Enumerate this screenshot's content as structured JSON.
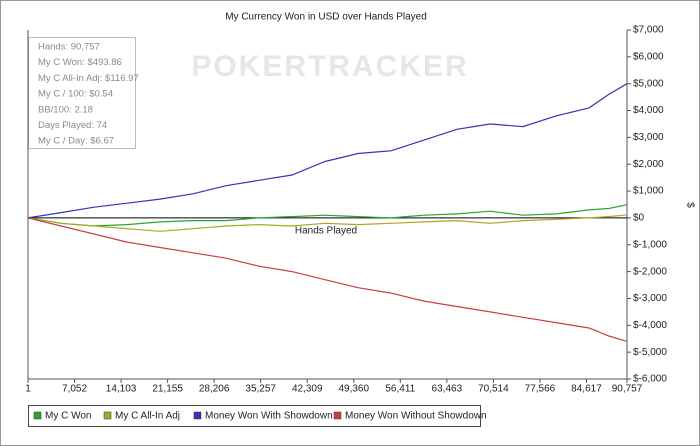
{
  "chart_data": {
    "type": "line",
    "title": "My Currency Won in USD over Hands Played",
    "x_label": "Hands Played",
    "y_label": "$",
    "watermark": "POKERTRACKER",
    "stats": [
      "Hands: 90,757",
      "My C Won: $493.86",
      "My C All-In Adj: $116.97",
      "My C / 100: $0.54",
      "BB/100: 2.18",
      "Days Played: 74",
      "My C / Day: $6.67"
    ],
    "x": [
      1,
      5000,
      10000,
      15000,
      20000,
      25000,
      30000,
      35000,
      40000,
      45000,
      50000,
      55000,
      60000,
      65000,
      70000,
      75000,
      80000,
      85000,
      88000,
      90757
    ],
    "series": [
      {
        "name": "My C Won",
        "color": "#2aa52a",
        "values": [
          0,
          -200,
          -300,
          -250,
          -150,
          -100,
          -100,
          0,
          50,
          100,
          50,
          0,
          100,
          150,
          250,
          100,
          150,
          300,
          350,
          493.86
        ]
      },
      {
        "name": "My C All-In Adj",
        "color": "#a9a824",
        "values": [
          0,
          -200,
          -300,
          -400,
          -500,
          -400,
          -300,
          -250,
          -300,
          -200,
          -250,
          -200,
          -150,
          -100,
          -200,
          -100,
          -50,
          0,
          50,
          116.97
        ]
      },
      {
        "name": "Money Won With Showdown",
        "color": "#3434b8",
        "values": [
          0,
          200,
          400,
          550,
          700,
          900,
          1200,
          1400,
          1600,
          2100,
          2400,
          2500,
          2900,
          3300,
          3500,
          3400,
          3800,
          4100,
          4600,
          5000
        ]
      },
      {
        "name": "Money Won Without Showdown",
        "color": "#c94040",
        "values": [
          0,
          -300,
          -600,
          -900,
          -1100,
          -1300,
          -1500,
          -1800,
          -2000,
          -2300,
          -2600,
          -2800,
          -3100,
          -3300,
          -3500,
          -3700,
          -3900,
          -4100,
          -4400,
          -4600
        ]
      }
    ],
    "xlim": [
      1,
      90757
    ],
    "xticks": [
      1,
      {
        "value": 7052,
        "label": "7,052"
      },
      {
        "value": 14103,
        "label": "14,103"
      },
      {
        "value": 21155,
        "label": "21,155"
      },
      {
        "value": 28206,
        "label": "28,206"
      },
      {
        "value": 35257,
        "label": "35,257"
      },
      {
        "value": 42309,
        "label": "42,309"
      },
      {
        "value": 49360,
        "label": "49,360"
      },
      {
        "value": 56411,
        "label": "56,411"
      },
      {
        "value": 63463,
        "label": "63,463"
      },
      {
        "value": 70514,
        "label": "70,514"
      },
      {
        "value": 77566,
        "label": "77,566"
      },
      {
        "value": 84617,
        "label": "84,617"
      },
      {
        "value": 90757,
        "label": "90,757"
      }
    ],
    "ylim": [
      -6000,
      7000
    ],
    "yticks": [
      {
        "value": -6000,
        "label": "$-6,000"
      },
      {
        "value": -5000,
        "label": "$-5,000"
      },
      {
        "value": -4000,
        "label": "$-4,000"
      },
      {
        "value": -3000,
        "label": "$-3,000"
      },
      {
        "value": -2000,
        "label": "$-2,000"
      },
      {
        "value": -1000,
        "label": "$-1,000"
      },
      {
        "value": 0,
        "label": "$0"
      },
      {
        "value": 1000,
        "label": "$1,000"
      },
      {
        "value": 2000,
        "label": "$2,000"
      },
      {
        "value": 3000,
        "label": "$3,000"
      },
      {
        "value": 4000,
        "label": "$4,000"
      },
      {
        "value": 5000,
        "label": "$5,000"
      },
      {
        "value": 6000,
        "label": "$6,000"
      },
      {
        "value": 7000,
        "label": "$7,000"
      }
    ],
    "legend": "bottom"
  }
}
